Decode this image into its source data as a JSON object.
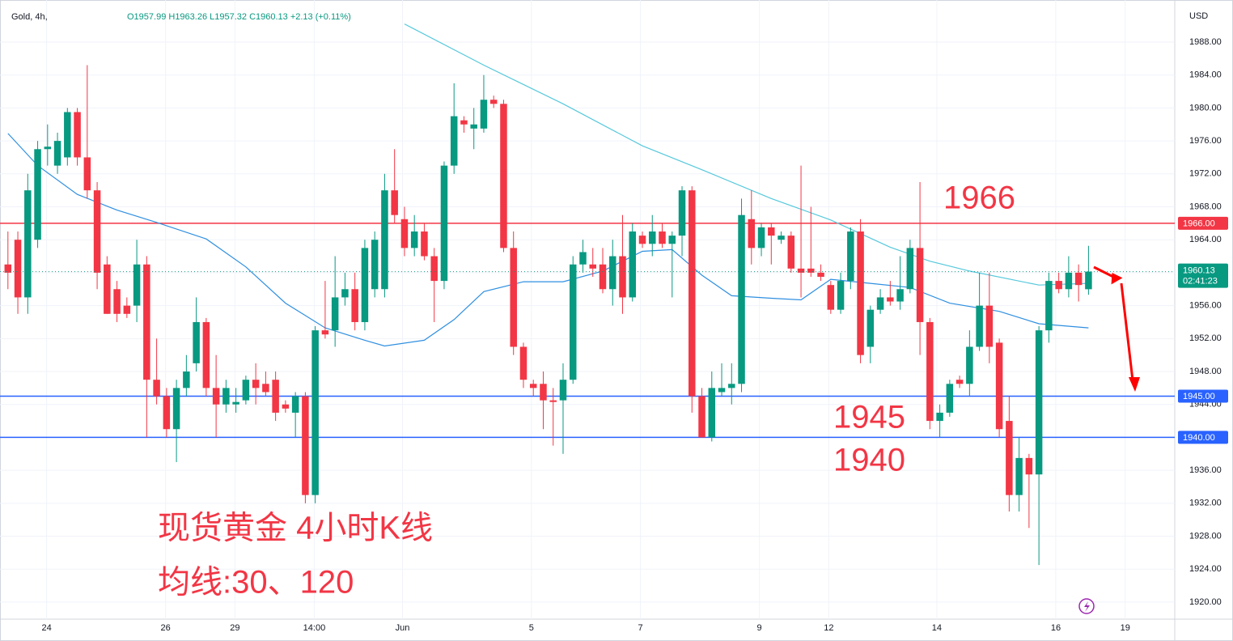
{
  "chart_data": {
    "type": "candlestick",
    "symbol": "Gold, 4h,",
    "ohlc_text": "O1957.99 H1963.26 L1957.32 C1960.13 +2.13 (+0.11%)",
    "currency": "USD",
    "up_color": "#089981",
    "down_color": "#f23645",
    "open": [
      1961,
      1964,
      1957,
      1964,
      1975,
      1973,
      1974,
      1979.5,
      1974,
      1970,
      1961,
      1958,
      1956,
      1956,
      1961,
      1947,
      1945,
      1941,
      1946,
      1949,
      1954,
      1946,
      1944,
      1944,
      1944.5,
      1947,
      1946.5,
      1947,
      1944,
      1943,
      1945,
      1933,
      1953,
      1953,
      1957,
      1958,
      1954,
      1958,
      1958,
      1970,
      1966.5,
      1963,
      1965,
      1962,
      1959,
      1973,
      1978.5,
      1977.5,
      1977.5,
      1981,
      1980.5,
      1963,
      1951,
      1946.5,
      1946.5,
      1944.5,
      1944.5,
      1947,
      1961,
      1961,
      1961,
      1958,
      1962,
      1957,
      1964.5,
      1963.5,
      1965,
      1963.5,
      1964.5,
      1970,
      1945,
      1940,
      1945.5,
      1946,
      1946.5,
      1966.5,
      1963,
      1965.5,
      1964,
      1964.5,
      1960.5,
      1960.5,
      1960,
      1958.5,
      1955.5,
      1959,
      1965,
      1951,
      1955.5,
      1957,
      1956.5,
      1958,
      1963,
      1954,
      1942,
      1943,
      1947,
      1946.5,
      1951,
      1956,
      1951.5,
      1942,
      1933,
      1937.5,
      1935.5,
      1953,
      1959,
      1958,
      1960,
      1957.99
    ],
    "high": [
      1965,
      1965,
      1972,
      1976,
      1978,
      1977,
      1980,
      1980,
      1985.2,
      1971,
      1962,
      1959,
      1957,
      1964,
      1962,
      1952,
      1946,
      1947,
      1950,
      1957,
      1954.5,
      1950,
      1947,
      1946,
      1947.5,
      1949,
      1948,
      1948,
      1944.5,
      1945.5,
      1945.5,
      1953.5,
      1959,
      1962,
      1960,
      1960,
      1964,
      1965,
      1972,
      1975,
      1968,
      1967,
      1966,
      1963,
      1973.5,
      1983,
      1979,
      1980,
      1984,
      1981.5,
      1981,
      1965,
      1951.5,
      1947,
      1948,
      1946,
      1949,
      1962,
      1964,
      1963,
      1963,
      1964,
      1967,
      1966,
      1965,
      1967,
      1966,
      1965,
      1970.5,
      1970.5,
      1946,
      1948,
      1949,
      1949,
      1969,
      1970,
      1966,
      1966,
      1965,
      1965,
      1973,
      1968,
      1961,
      1959,
      1960,
      1965.5,
      1966.5,
      1956,
      1958,
      1959,
      1962,
      1964,
      1971,
      1954.5,
      1944,
      1947,
      1947.5,
      1953,
      1960,
      1960,
      1952,
      1945,
      1940,
      1938,
      1953.5,
      1960,
      1960,
      1962,
      1961,
      1963.26
    ],
    "low": [
      1958,
      1955,
      1955,
      1963,
      1973,
      1972,
      1973,
      1973,
      1969,
      1958,
      1955,
      1954,
      1954.5,
      1954,
      1940,
      1944,
      1940,
      1937,
      1945,
      1948,
      1945,
      1940,
      1943,
      1943,
      1944,
      1944,
      1945,
      1942,
      1943,
      1940,
      1932,
      1932,
      1952,
      1951,
      1956,
      1953,
      1953,
      1957,
      1957,
      1966,
      1962,
      1962,
      1961.5,
      1954,
      1958,
      1972,
      1977,
      1975,
      1977,
      1980,
      1962.5,
      1950,
      1946,
      1945,
      1941,
      1939,
      1938,
      1946.5,
      1960,
      1959.5,
      1957.5,
      1956,
      1955,
      1956.5,
      1963,
      1962,
      1963,
      1957,
      1962,
      1943,
      1940,
      1939.5,
      1945,
      1944,
      1945.5,
      1961,
      1962,
      1961,
      1963.5,
      1960,
      1957,
      1959.5,
      1959,
      1955,
      1955,
      1958,
      1949,
      1949,
      1955,
      1956,
      1955.5,
      1957.5,
      1950,
      1941,
      1940,
      1942.5,
      1946,
      1945,
      1950.5,
      1949,
      1940,
      1931,
      1931,
      1929,
      1924.5,
      1951.5,
      1957.5,
      1957,
      1956.5,
      1957.32
    ],
    "close": [
      1960,
      1957,
      1970,
      1975,
      1975.3,
      1976,
      1979.5,
      1974,
      1970,
      1960,
      1955,
      1955,
      1955,
      1961,
      1947,
      1945,
      1941,
      1946,
      1948,
      1954,
      1946,
      1944,
      1946,
      1944.3,
      1947,
      1946,
      1945.5,
      1943,
      1943.5,
      1945,
      1933,
      1953,
      1952.5,
      1957,
      1958,
      1954,
      1963,
      1964,
      1970,
      1967,
      1963,
      1965,
      1962,
      1959,
      1973,
      1979,
      1978,
      1978,
      1981,
      1980.5,
      1963,
      1951,
      1947,
      1946,
      1944.5,
      1944.3,
      1947,
      1961,
      1962.5,
      1960.5,
      1958,
      1962,
      1957,
      1965,
      1963.5,
      1965,
      1963.5,
      1964.5,
      1970,
      1945,
      1940,
      1946,
      1946,
      1946.5,
      1967,
      1963,
      1965.5,
      1964.5,
      1964.5,
      1960.5,
      1960,
      1960,
      1959.5,
      1955.5,
      1959,
      1965,
      1950,
      1955.5,
      1957,
      1956.5,
      1958,
      1963,
      1954,
      1942,
      1943,
      1946.5,
      1946.5,
      1951,
      1956,
      1951,
      1941,
      1933,
      1937.5,
      1935.5,
      1953,
      1959,
      1958,
      1960,
      1958.5,
      1960.13
    ],
    "moving_averages": [
      {
        "color": "#56c8dc",
        "x": [
          40,
          48,
          56,
          64,
          70,
          77,
          83,
          89,
          93,
          97,
          104,
          109
        ],
        "values": [
          1990.2,
          1985.2,
          1980.5,
          1975.4,
          1972.5,
          1969,
          1966.4,
          1963.1,
          1961.4,
          1960.2,
          1958.5,
          1958.7
        ]
      },
      {
        "color": "#2f8fe0",
        "x": [
          0,
          3,
          7,
          11,
          15,
          20,
          24,
          28,
          32,
          36,
          38,
          42,
          45,
          48,
          52,
          56,
          60,
          64,
          67,
          70,
          73,
          77,
          80,
          83,
          87,
          91,
          95,
          100,
          104,
          109
        ],
        "values": [
          1976.9,
          1973,
          1969.5,
          1967.6,
          1966.1,
          1964.1,
          1960.7,
          1956.3,
          1953.3,
          1951.8,
          1951.1,
          1951.8,
          1954.3,
          1957.7,
          1958.9,
          1958.9,
          1960.2,
          1962.6,
          1962.8,
          1959.7,
          1957.2,
          1956.9,
          1956.7,
          1959.2,
          1958.7,
          1958.2,
          1956.3,
          1955.3,
          1953.8,
          1953.3
        ]
      }
    ],
    "levels": [
      {
        "value": 1966,
        "label": "1966.00",
        "color": "#f23645"
      },
      {
        "value": 1945,
        "label": "1945.00",
        "color": "#2962ff"
      },
      {
        "value": 1940,
        "label": "1940.00",
        "color": "#2962ff"
      }
    ],
    "last_price": {
      "value": 1960.13,
      "label": "1960.13",
      "countdown": "02:41:23"
    },
    "annotations": [
      "1966",
      "1945",
      "1940",
      "现货黄金 4小时K线",
      "均线:30、120"
    ],
    "xlim": [
      -0.8,
      117.7
    ],
    "ylim": [
      1917.93,
      1993.11
    ],
    "xticks": [
      {
        "value": 3.9,
        "label": "24"
      },
      {
        "value": 15.9,
        "label": "26"
      },
      {
        "value": 22.9,
        "label": "29"
      },
      {
        "value": 30.9,
        "label": "14:00"
      },
      {
        "value": 39.8,
        "label": "Jun"
      },
      {
        "value": 52.8,
        "label": "5"
      },
      {
        "value": 63.8,
        "label": "7"
      },
      {
        "value": 75.8,
        "label": "9"
      },
      {
        "value": 82.8,
        "label": "12"
      },
      {
        "value": 93.7,
        "label": "14"
      },
      {
        "value": 105.7,
        "label": "16"
      },
      {
        "value": 112.7,
        "label": "19"
      }
    ],
    "yticks": [
      {
        "value": 1920,
        "label": "1920.00"
      },
      {
        "value": 1924,
        "label": "1924.00"
      },
      {
        "value": 1928,
        "label": "1928.00"
      },
      {
        "value": 1932,
        "label": "1932.00"
      },
      {
        "value": 1936,
        "label": "1936.00"
      },
      {
        "value": 1940,
        "label": "1940.00"
      },
      {
        "value": 1944,
        "label": "1944.00"
      },
      {
        "value": 1948,
        "label": "1948.00"
      },
      {
        "value": 1952,
        "label": "1952.00"
      },
      {
        "value": 1956,
        "label": "1956.00"
      },
      {
        "value": 1960,
        "label": "1960.00"
      },
      {
        "value": 1964,
        "label": "1964.00"
      },
      {
        "value": 1968,
        "label": "1968.00"
      },
      {
        "value": 1972,
        "label": "1972.00"
      },
      {
        "value": 1976,
        "label": "1976.00"
      },
      {
        "value": 1980,
        "label": "1980.00"
      },
      {
        "value": 1984,
        "label": "1984.00"
      },
      {
        "value": 1988,
        "label": "1988.00"
      }
    ]
  }
}
